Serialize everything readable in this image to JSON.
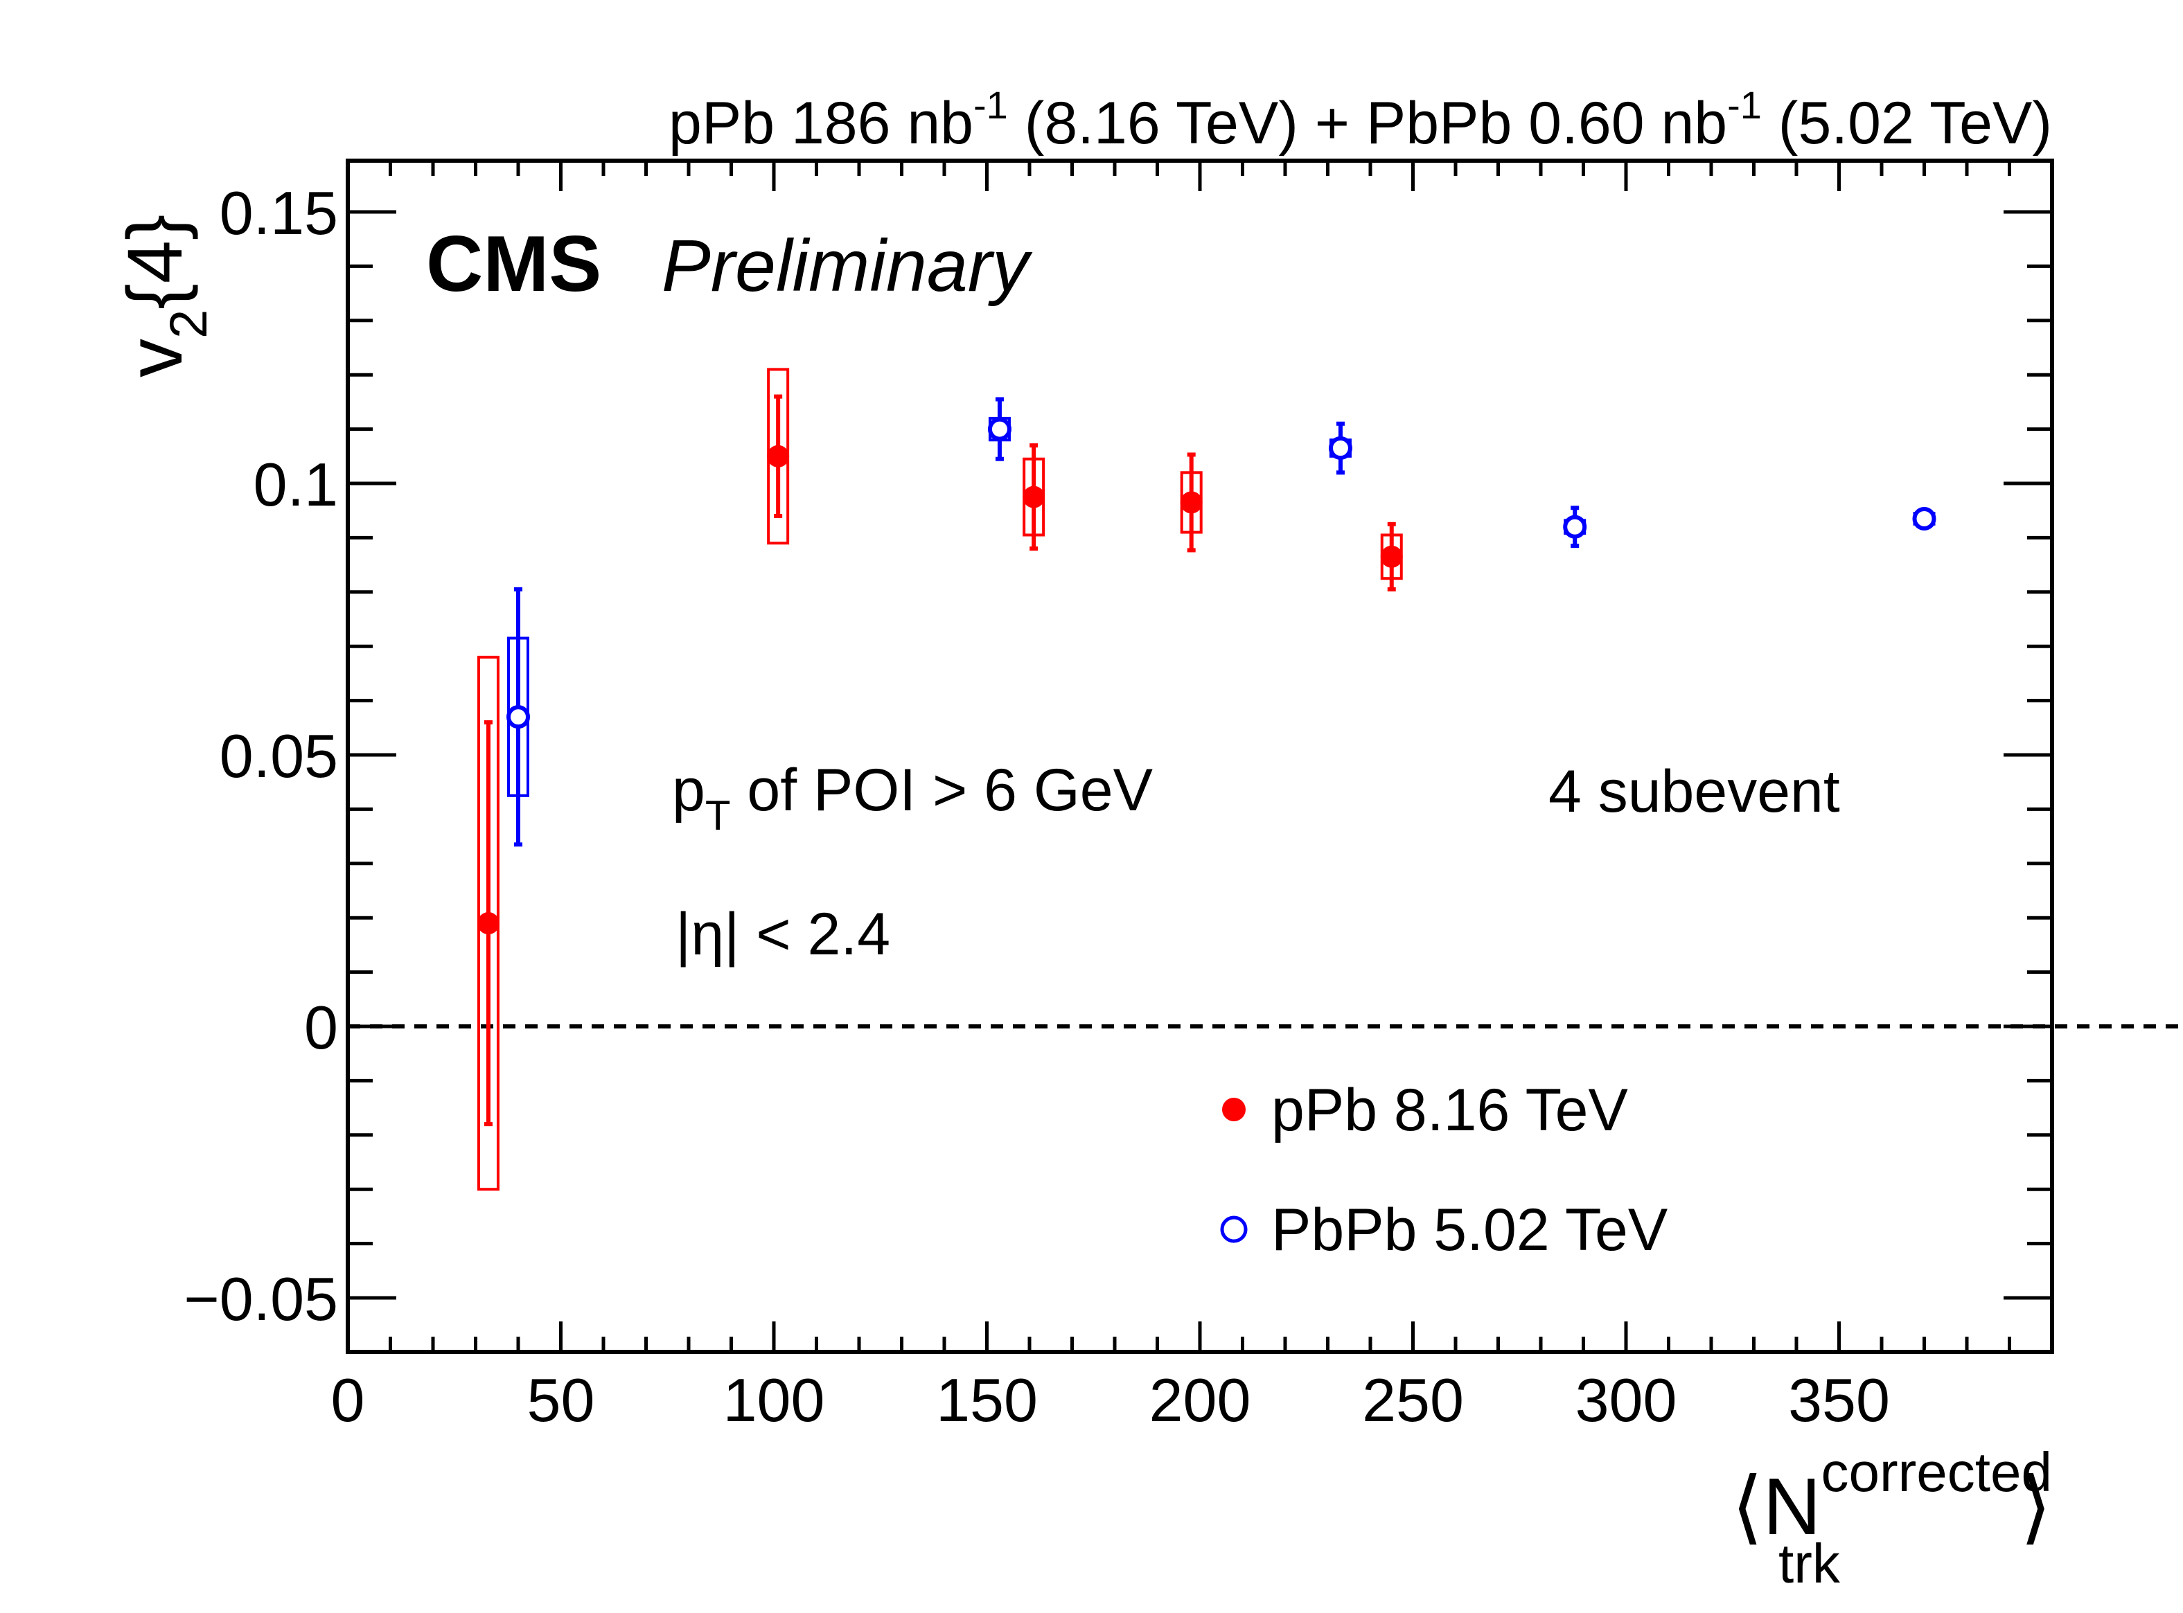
{
  "header": {
    "label": "pPb 186 nb⁻¹ (8.16 TeV) + PbPb 0.60 nb⁻¹ (5.02 TeV)",
    "part1": "pPb 186 nb",
    "sup1": "-1",
    "part2": " (8.16 TeV) + PbPb 0.60 nb",
    "sup2": "-1",
    "part3": " (5.02 TeV)"
  },
  "branding": {
    "experiment": "CMS",
    "status": "Preliminary"
  },
  "annotations": {
    "pt_label": "pₜ of POI > 6 GeV",
    "pt_p": "p",
    "pt_sub": "T",
    "pt_rest": " of POI > 6 GeV",
    "eta_cut": "|η| < 2.4",
    "subevent": "4 subevent"
  },
  "colors": {
    "pPb": "#ff0000",
    "PbPb": "#0000ff",
    "axis": "#000000"
  },
  "chart_data": {
    "type": "scatter",
    "ylabel": "v₂{4}",
    "ylabel_main": "v",
    "ylabel_sub": "2",
    "ylabel_braces": "{4}",
    "xlabel": "⟨Nₜᵣₖ^corrected⟩",
    "xlabel_open": "⟨",
    "xlabel_main": "N",
    "xlabel_sub": "trk",
    "xlabel_sup": "corrected",
    "xlabel_close": "⟩",
    "xlim": [
      0,
      400
    ],
    "ylim": [
      -0.06,
      0.16
    ],
    "x_ticks": [
      0,
      50,
      100,
      150,
      200,
      250,
      300,
      350
    ],
    "x_tick_labels": [
      "0",
      "50",
      "100",
      "150",
      "200",
      "250",
      "300",
      "350"
    ],
    "y_ticks": [
      -0.05,
      0,
      0.05,
      0.1,
      0.15
    ],
    "y_tick_labels": [
      "−0.05",
      "0",
      "0.05",
      "0.1",
      "0.15"
    ],
    "reference_line": {
      "y": 0,
      "style": "dashed"
    },
    "legend_position": "bottom-right",
    "grid": false,
    "series": [
      {
        "name": "pPb 8.16 TeV",
        "marker": "filled-circle",
        "color": "#ff0000",
        "points": [
          {
            "x": 33,
            "y": 0.019,
            "stat": 0.037,
            "sys": 0.049
          },
          {
            "x": 101,
            "y": 0.105,
            "stat": 0.011,
            "sys": 0.016
          },
          {
            "x": 161,
            "y": 0.0975,
            "stat": 0.0095,
            "sys": 0.007
          },
          {
            "x": 198,
            "y": 0.0965,
            "stat": 0.0088,
            "sys": 0.0055
          },
          {
            "x": 245,
            "y": 0.0865,
            "stat": 0.006,
            "sys": 0.004
          }
        ]
      },
      {
        "name": "PbPb 5.02 TeV",
        "marker": "open-circle",
        "color": "#0000ff",
        "points": [
          {
            "x": 40,
            "y": 0.057,
            "stat": 0.0235,
            "sys": 0.0145
          },
          {
            "x": 153,
            "y": 0.11,
            "stat": 0.0055,
            "sys": 0.002
          },
          {
            "x": 233,
            "y": 0.1065,
            "stat": 0.0045,
            "sys": 0.0015
          },
          {
            "x": 288,
            "y": 0.092,
            "stat": 0.0035,
            "sys": 0.0012
          },
          {
            "x": 370,
            "y": 0.0935,
            "stat": 0.0015,
            "sys": 0.001
          }
        ]
      }
    ]
  }
}
